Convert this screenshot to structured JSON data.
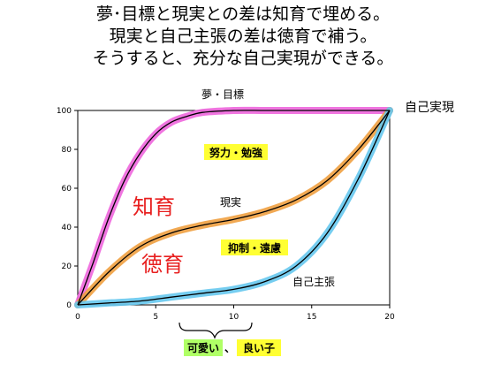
{
  "heading": {
    "line1": "夢･目標と現実との差は知育で埋める。",
    "line2": "現実と自己主張の差は徳育で補う。",
    "line3": "そうすると、充分な自己実現ができる。"
  },
  "chart_data": {
    "type": "line",
    "xlim": [
      0,
      20
    ],
    "ylim": [
      0,
      100
    ],
    "xticks": [
      "0",
      "5",
      "10",
      "15",
      "20"
    ],
    "yticks": [
      "0",
      "20",
      "40",
      "60",
      "80",
      "100"
    ],
    "series": [
      {
        "name": "夢・目標",
        "glow": "#ee66dd",
        "x": [
          0,
          1,
          2,
          3,
          4,
          5,
          6,
          7,
          8,
          10,
          12,
          14,
          16,
          18,
          20
        ],
        "y": [
          0,
          22,
          45,
          64,
          78,
          88,
          94,
          97,
          99,
          100,
          100,
          100,
          100,
          100,
          100
        ]
      },
      {
        "name": "現実",
        "glow": "#f0a040",
        "x": [
          0,
          2,
          4,
          6,
          8,
          10,
          12,
          14,
          16,
          18,
          20
        ],
        "y": [
          0,
          17,
          30,
          37,
          41,
          44,
          48,
          54,
          64,
          80,
          100
        ]
      },
      {
        "name": "自己主張",
        "glow": "#66c8ee",
        "x": [
          0,
          2,
          4,
          6,
          8,
          10,
          12,
          14,
          16,
          18,
          20
        ],
        "y": [
          0,
          1,
          2,
          4,
          6,
          8,
          12,
          20,
          37,
          65,
          100
        ]
      }
    ],
    "annotations": {
      "effort": "努力・勉強",
      "restraint": "抑制・遠慮",
      "chiiku": "知育",
      "tokuiku": "徳育",
      "self_realization": "自己実現",
      "good_kid_1": "可愛い",
      "good_kid_sep": "、",
      "good_kid_2": "良い子"
    },
    "colors": {
      "highlight_yellow": "#ffff33",
      "highlight_green": "#b0ff66",
      "red_text": "#e82020"
    }
  }
}
